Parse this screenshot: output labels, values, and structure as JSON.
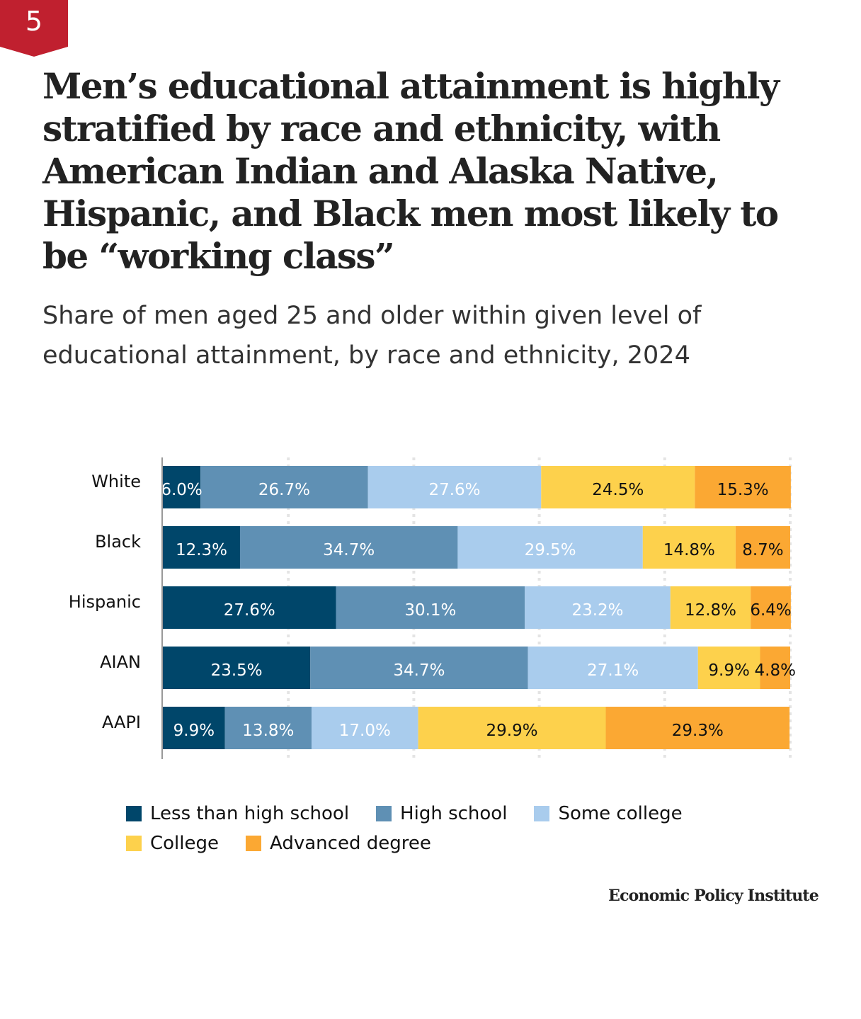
{
  "badge": {
    "number": "5",
    "color": "#c0202f"
  },
  "header": {
    "title": "Men’s educational attainment is highly stratified by race and ethnicity, with American Indian and Alaska Native, Hispanic, and Black men most likely to be “working class”",
    "subtitle": "Share of men aged 25 and older within given level of educational attainment, by race and ethnicity, 2024"
  },
  "chart_data": {
    "type": "bar",
    "orientation": "horizontal",
    "stacked": true,
    "title": "Men’s educational attainment is highly stratified by race and ethnicity, with American Indian and Alaska Native, Hispanic, and Black men most likely to be “working class”",
    "subtitle": "Share of men aged 25 and older within given level of educational attainment, by race and ethnicity, 2024",
    "categories": [
      "White",
      "Black",
      "Hispanic",
      "AIAN",
      "AAPI"
    ],
    "series": [
      {
        "name": "Less than high school",
        "color": "#00466a",
        "label_color": "#ffffff",
        "values": [
          6.0,
          12.3,
          27.6,
          23.5,
          9.9
        ],
        "labels": [
          "6.0%",
          "12.3%",
          "27.6%",
          "23.5%",
          "9.9%"
        ]
      },
      {
        "name": "High school",
        "color": "#5f90b4",
        "label_color": "#ffffff",
        "values": [
          26.7,
          34.7,
          30.1,
          34.7,
          13.8
        ],
        "labels": [
          "26.7%",
          "34.7%",
          "30.1%",
          "34.7%",
          "13.8%"
        ]
      },
      {
        "name": "Some college",
        "color": "#a9cced",
        "label_color": "#ffffff",
        "values": [
          27.6,
          29.5,
          23.2,
          27.1,
          17.0
        ],
        "labels": [
          "27.6%",
          "29.5%",
          "23.2%",
          "27.1%",
          "17.0%"
        ]
      },
      {
        "name": "College",
        "color": "#fdd14c",
        "label_color": "#111111",
        "values": [
          24.5,
          14.8,
          12.8,
          9.9,
          29.9
        ],
        "labels": [
          "24.5%",
          "14.8%",
          "12.8%",
          "9.9%",
          "29.9%"
        ]
      },
      {
        "name": "Advanced degree",
        "color": "#fba833",
        "label_color": "#111111",
        "values": [
          15.3,
          8.7,
          6.4,
          4.8,
          29.3
        ],
        "labels": [
          "15.3%",
          "8.7%",
          "6.4%",
          "4.8%",
          "29.3%"
        ]
      }
    ],
    "xlim": [
      0,
      100
    ],
    "x_gridlines": [
      0,
      20,
      40,
      60,
      80,
      100
    ],
    "grid": true,
    "xlabel": "",
    "ylabel": "",
    "legend_position": "bottom"
  },
  "legend": {
    "rows": [
      [
        {
          "label": "Less than high school",
          "color": "#00466a"
        },
        {
          "label": "High school",
          "color": "#5f90b4"
        },
        {
          "label": "Some college",
          "color": "#a9cced"
        }
      ],
      [
        {
          "label": "College",
          "color": "#fdd14c"
        },
        {
          "label": "Advanced degree",
          "color": "#fba833"
        }
      ]
    ]
  },
  "footer": {
    "source": "Economic Policy Institute"
  }
}
